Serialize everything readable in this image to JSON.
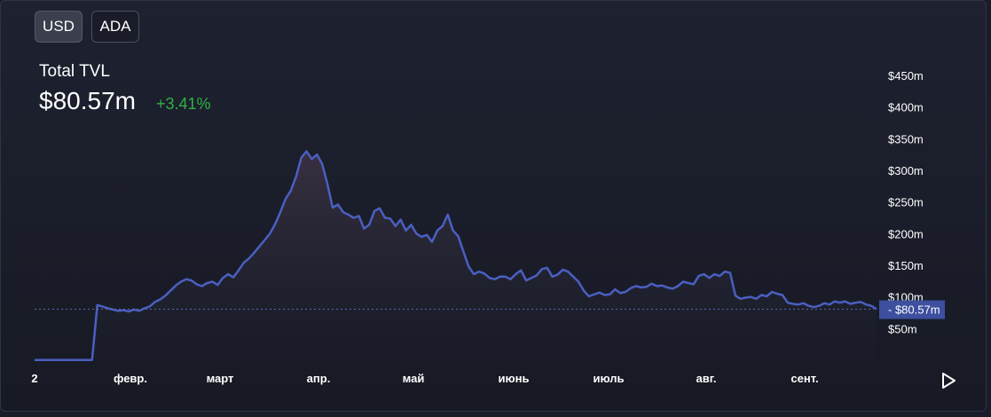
{
  "toggles": {
    "usd": "USD",
    "ada": "ADA",
    "active": "USD"
  },
  "header": {
    "title": "Total TVL",
    "value": "$80.57m",
    "change": "+3.41%"
  },
  "colors": {
    "line": "#4a5fc1",
    "change": "#2fb344",
    "badge": "#3d4f9e"
  },
  "chart_data": {
    "type": "area",
    "title": "Total TVL",
    "xlabel": "",
    "ylabel": "",
    "ylim": [
      0,
      450
    ],
    "y_ticks": [
      "$50m",
      "$100m",
      "$150m",
      "$200m",
      "$250m",
      "$300m",
      "$350m",
      "$400m",
      "$450m"
    ],
    "x_ticks": [
      "2",
      "февр.",
      "март",
      "апр.",
      "май",
      "июнь",
      "июль",
      "авг.",
      "сент."
    ],
    "current_value": 80.57,
    "current_label": "$80.57m",
    "grid": false,
    "series": [
      {
        "values": [
          0.3,
          0.3,
          0.3,
          0.3,
          0.3,
          0.3,
          0.3,
          0.3,
          0.3,
          0.3,
          0.3,
          0.5,
          87,
          85,
          82,
          80,
          78,
          79,
          77,
          80,
          78,
          82,
          85,
          92,
          96,
          102,
          110,
          118,
          124,
          128,
          126,
          120,
          117,
          122,
          124,
          119,
          130,
          136,
          131,
          142,
          154,
          161,
          170,
          180,
          190,
          200,
          215,
          234,
          255,
          268,
          290,
          320,
          330,
          318,
          325,
          310,
          278,
          241,
          246,
          234,
          230,
          225,
          228,
          208,
          214,
          236,
          240,
          225,
          224,
          212,
          222,
          205,
          214,
          200,
          195,
          198,
          187,
          205,
          212,
          230,
          205,
          196,
          172,
          148,
          136,
          140,
          137,
          130,
          128,
          132,
          132,
          128,
          136,
          142,
          126,
          130,
          134,
          144,
          146,
          132,
          135,
          143,
          140,
          132,
          124,
          110,
          101,
          104,
          107,
          103,
          104,
          112,
          106,
          108,
          114,
          117,
          115,
          116,
          121,
          117,
          118,
          115,
          113,
          117,
          124,
          122,
          120,
          133,
          136,
          130,
          136,
          133,
          140,
          138,
          102,
          97,
          99,
          100,
          97,
          103,
          101,
          108,
          105,
          103,
          91,
          89,
          88,
          90,
          86,
          84,
          86,
          90,
          88,
          93,
          91,
          93,
          89,
          91,
          92,
          88,
          86,
          80.57
        ]
      }
    ]
  }
}
